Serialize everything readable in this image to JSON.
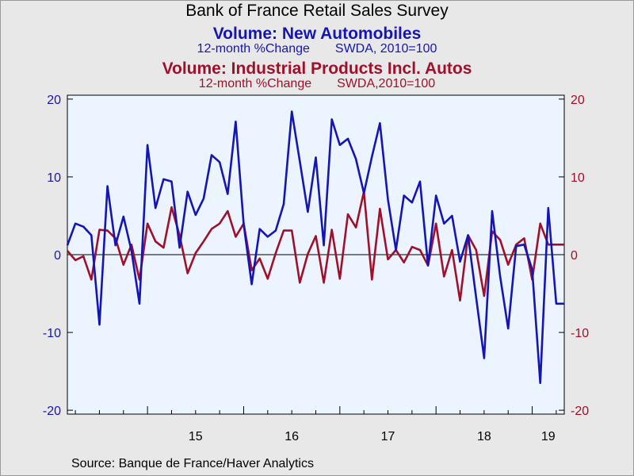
{
  "chart_data": {
    "type": "line",
    "title": "Bank of France Retail Sales Survey",
    "source": "Source:  Banque de France/Haver Analytics",
    "x_tick_labels": [
      "15",
      "16",
      "17",
      "18",
      "19"
    ],
    "y_ticks": [
      20,
      10,
      0,
      -10,
      -20
    ],
    "ylim": [
      -20.5,
      20.5
    ],
    "grid": false,
    "x_axis": {
      "start": "2014-03",
      "end": "2019-05",
      "frequency": "monthly"
    },
    "series": [
      {
        "name": "Volume: New Automobiles",
        "subtitle": "12-month %Change",
        "note": "SWDA, 2010=100",
        "axis": "left",
        "color": "#1515b4",
        "x": [
          "2014-03",
          "2014-04",
          "2014-05",
          "2014-06",
          "2014-07",
          "2014-08",
          "2014-09",
          "2014-10",
          "2014-11",
          "2014-12",
          "2015-01",
          "2015-02",
          "2015-03",
          "2015-04",
          "2015-05",
          "2015-06",
          "2015-07",
          "2015-08",
          "2015-09",
          "2015-10",
          "2015-11",
          "2015-12",
          "2016-01",
          "2016-02",
          "2016-03",
          "2016-04",
          "2016-05",
          "2016-06",
          "2016-07",
          "2016-08",
          "2016-09",
          "2016-10",
          "2016-11",
          "2016-12",
          "2017-01",
          "2017-02",
          "2017-03",
          "2017-04",
          "2017-05",
          "2017-06",
          "2017-07",
          "2017-08",
          "2017-09",
          "2017-10",
          "2017-11",
          "2017-12",
          "2018-01",
          "2018-02",
          "2018-03",
          "2018-04",
          "2018-05",
          "2018-06",
          "2018-07",
          "2018-08",
          "2018-09",
          "2018-10",
          "2018-11",
          "2018-12",
          "2019-01",
          "2019-02",
          "2019-03",
          "2019-04",
          "2019-05"
        ],
        "values": [
          1.2,
          4.0,
          3.6,
          2.5,
          -9.0,
          8.8,
          1.2,
          4.9,
          0.5,
          -6.3,
          14.1,
          6.0,
          9.7,
          9.4,
          0.9,
          8.1,
          5.1,
          7.2,
          12.8,
          11.9,
          7.8,
          17.1,
          3.9,
          -3.8,
          3.3,
          2.3,
          3.1,
          6.5,
          18.4,
          12.0,
          5.5,
          12.5,
          1.2,
          17.4,
          14.1,
          14.9,
          12.3,
          7.9,
          12.6,
          16.9,
          7.1,
          0.6,
          7.6,
          6.7,
          9.4,
          -1.4,
          7.6,
          4.0,
          5.0,
          -0.9,
          2.5,
          -5.5,
          -13.3,
          5.6,
          -2.8,
          -9.5,
          1.1,
          1.3,
          -1.9,
          -16.5,
          6.0,
          -6.3,
          -6.3
        ]
      },
      {
        "name": "Volume: Industrial Products Incl. Autos",
        "subtitle": "12-month %Change",
        "note": "SWDA,2010=100",
        "axis": "right",
        "color": "#a0102a",
        "x": [
          "2014-03",
          "2014-04",
          "2014-05",
          "2014-06",
          "2014-07",
          "2014-08",
          "2014-09",
          "2014-10",
          "2014-11",
          "2014-12",
          "2015-01",
          "2015-02",
          "2015-03",
          "2015-04",
          "2015-05",
          "2015-06",
          "2015-07",
          "2015-08",
          "2015-09",
          "2015-10",
          "2015-11",
          "2015-12",
          "2016-01",
          "2016-02",
          "2016-03",
          "2016-04",
          "2016-05",
          "2016-06",
          "2016-07",
          "2016-08",
          "2016-09",
          "2016-10",
          "2016-11",
          "2016-12",
          "2017-01",
          "2017-02",
          "2017-03",
          "2017-04",
          "2017-05",
          "2017-06",
          "2017-07",
          "2017-08",
          "2017-09",
          "2017-10",
          "2017-11",
          "2017-12",
          "2018-01",
          "2018-02",
          "2018-03",
          "2018-04",
          "2018-05",
          "2018-06",
          "2018-07",
          "2018-08",
          "2018-09",
          "2018-10",
          "2018-11",
          "2018-12",
          "2019-01",
          "2019-02",
          "2019-03",
          "2019-04",
          "2019-05"
        ],
        "values": [
          0.5,
          -0.7,
          -0.2,
          -3.2,
          3.2,
          3.1,
          2.1,
          -1.3,
          1.3,
          -3.2,
          4.0,
          1.7,
          0.9,
          6.1,
          2.5,
          -2.4,
          0.2,
          1.7,
          3.3,
          4.0,
          5.6,
          2.3,
          4.0,
          -2.0,
          -0.5,
          -3.1,
          0.2,
          3.1,
          3.1,
          -3.6,
          0.1,
          2.4,
          -3.6,
          3.2,
          -3.1,
          5.2,
          3.5,
          8.1,
          -3.2,
          5.9,
          -0.6,
          0.6,
          -1.0,
          1.0,
          0.6,
          -1.4,
          4.0,
          -2.8,
          0.6,
          -5.9,
          2.5,
          0.6,
          -5.3,
          3.0,
          1.9,
          -1.3,
          1.3,
          2.1,
          -3.2,
          4.0,
          1.3,
          1.3,
          1.3
        ]
      }
    ]
  }
}
